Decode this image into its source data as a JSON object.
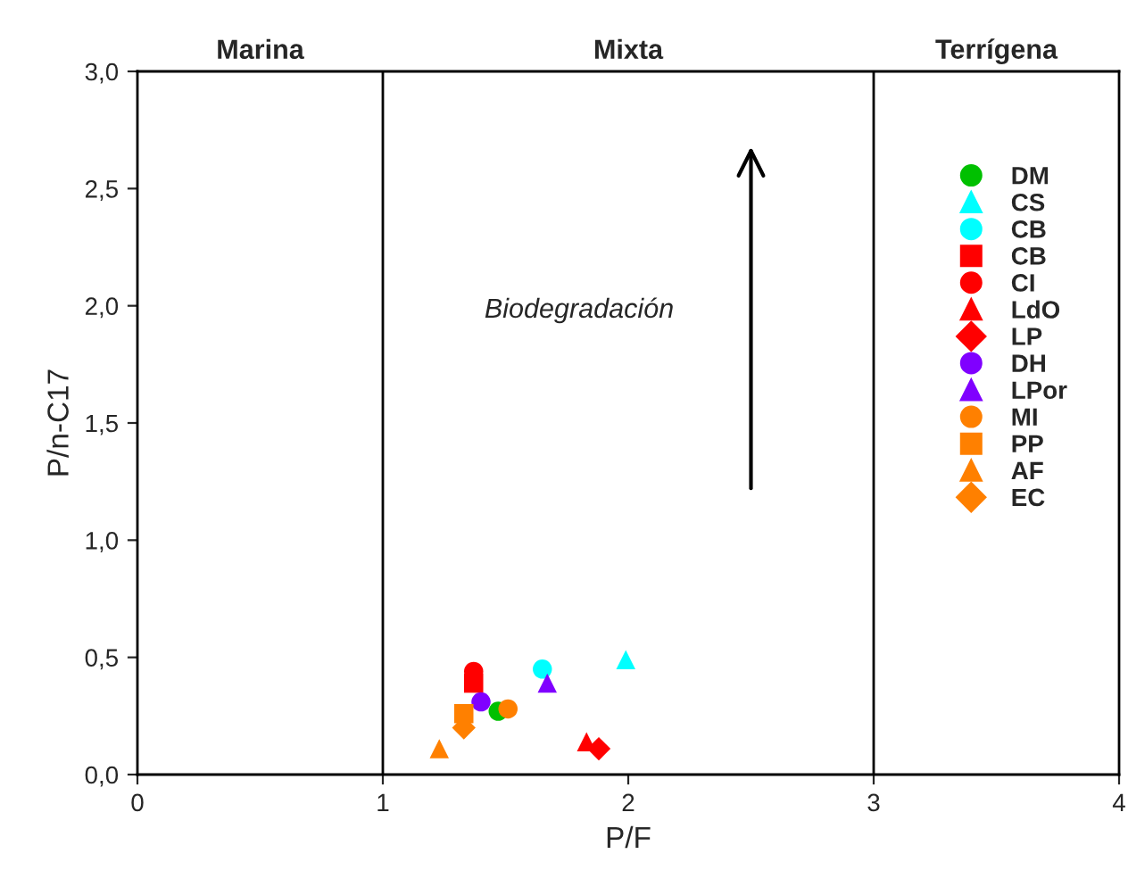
{
  "chart_data": {
    "type": "scatter",
    "xlabel": "P/F",
    "ylabel": "P/n-C17",
    "xlim": [
      0,
      4
    ],
    "ylim": [
      0,
      3
    ],
    "xticks": [
      0,
      1,
      2,
      3,
      4
    ],
    "yticks": [
      {
        "value": 0,
        "label": "0,0"
      },
      {
        "value": 0.5,
        "label": "0,5"
      },
      {
        "value": 1,
        "label": "1,0"
      },
      {
        "value": 1.5,
        "label": "1,5"
      },
      {
        "value": 2,
        "label": "2,0"
      },
      {
        "value": 2.5,
        "label": "2,5"
      },
      {
        "value": 3,
        "label": "3,0"
      }
    ],
    "grid": false,
    "legend": "right",
    "series": [
      {
        "name": "DM",
        "color": "#00c000",
        "marker": "circle",
        "x": [
          1.47
        ],
        "values": [
          0.27
        ]
      },
      {
        "name": "CS",
        "color": "#00ffff",
        "marker": "triangle",
        "x": [
          1.99
        ],
        "values": [
          0.49
        ]
      },
      {
        "name": "CB",
        "color": "#00ffff",
        "marker": "circle",
        "x": [
          1.65
        ],
        "values": [
          0.45
        ]
      },
      {
        "name": "CB",
        "color": "#ff0000",
        "marker": "square",
        "x": [
          1.37
        ],
        "values": [
          0.39
        ]
      },
      {
        "name": "CI",
        "color": "#ff0000",
        "marker": "circle",
        "x": [
          1.37
        ],
        "values": [
          0.44
        ]
      },
      {
        "name": "LdO",
        "color": "#ff0000",
        "marker": "triangle",
        "x": [
          1.83
        ],
        "values": [
          0.14
        ]
      },
      {
        "name": "LP",
        "color": "#ff0000",
        "marker": "diamond",
        "x": [
          1.88
        ],
        "values": [
          0.11
        ]
      },
      {
        "name": "DH",
        "color": "#8000ff",
        "marker": "circle",
        "x": [
          1.4
        ],
        "values": [
          0.31
        ]
      },
      {
        "name": "LPor",
        "color": "#8000ff",
        "marker": "triangle",
        "x": [
          1.67
        ],
        "values": [
          0.39
        ]
      },
      {
        "name": "MI",
        "color": "#ff8000",
        "marker": "circle",
        "x": [
          1.51
        ],
        "values": [
          0.28
        ]
      },
      {
        "name": "PP",
        "color": "#ff8000",
        "marker": "square",
        "x": [
          1.33
        ],
        "values": [
          0.26
        ]
      },
      {
        "name": "AF",
        "color": "#ff8000",
        "marker": "triangle",
        "x": [
          1.23
        ],
        "values": [
          0.11
        ]
      },
      {
        "name": "EC",
        "color": "#ff8000",
        "marker": "diamond",
        "x": [
          1.33
        ],
        "values": [
          0.2
        ]
      }
    ],
    "ref_lines": [
      {
        "axis": "x",
        "value": 1,
        "color": "#000000"
      },
      {
        "axis": "x",
        "value": 3,
        "color": "#000000"
      }
    ],
    "annotations": [
      "Marina",
      "Mixta",
      "Terrígena",
      "Biodegradación"
    ]
  }
}
